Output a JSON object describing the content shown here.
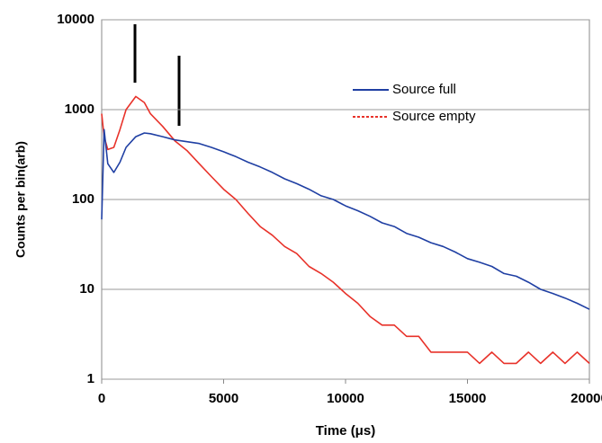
{
  "chart_data": {
    "type": "line",
    "x": [
      0,
      100,
      250,
      500,
      750,
      1000,
      1400,
      1750,
      2000,
      2500,
      3000,
      3500,
      4000,
      4500,
      5000,
      5500,
      6000,
      6500,
      7000,
      7500,
      8000,
      8500,
      9000,
      9500,
      10000,
      10500,
      11000,
      11500,
      12000,
      12500,
      13000,
      13500,
      14000,
      14500,
      15000,
      15500,
      16000,
      16500,
      17000,
      17500,
      18000,
      18500,
      19000,
      19500,
      20000
    ],
    "series": [
      {
        "name": "Source full",
        "color": "#1f3fa3",
        "values": [
          60,
          600,
          250,
          200,
          260,
          380,
          500,
          550,
          540,
          500,
          460,
          440,
          420,
          380,
          340,
          300,
          260,
          230,
          200,
          170,
          150,
          130,
          110,
          100,
          85,
          75,
          65,
          55,
          50,
          42,
          38,
          33,
          30,
          26,
          22,
          20,
          18,
          15,
          14,
          12,
          10,
          9,
          8,
          7,
          6
        ]
      },
      {
        "name": "Source empty",
        "color": "#e8322a",
        "values": [
          900,
          500,
          360,
          380,
          600,
          1000,
          1400,
          1200,
          900,
          650,
          450,
          350,
          250,
          180,
          130,
          100,
          70,
          50,
          40,
          30,
          25,
          18,
          15,
          12,
          9,
          7,
          5,
          4,
          4,
          3,
          3,
          2,
          2,
          2,
          2,
          1.5,
          2,
          1.5,
          1.5,
          2,
          1.5,
          2,
          1.5,
          2,
          1.5
        ]
      }
    ],
    "x_label": "Time (μs)",
    "y_label": "Counts per bin(arb)",
    "xlim": [
      0,
      20000
    ],
    "xticks": [
      0,
      5000,
      10000,
      15000,
      20000
    ],
    "ylim": [
      1,
      10000
    ],
    "yticks": [
      1,
      10,
      100,
      1000,
      10000
    ],
    "log_y": true,
    "grid": true,
    "legend": "upper right"
  }
}
